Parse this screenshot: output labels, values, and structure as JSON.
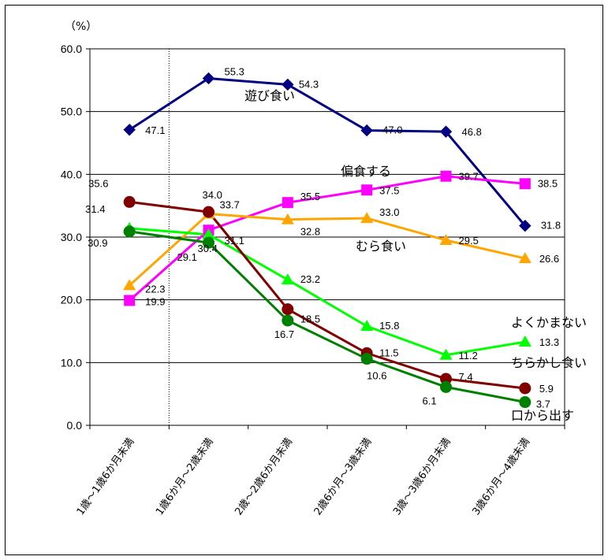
{
  "chart_data": {
    "type": "line",
    "ylabel": "（%）",
    "ylim": [
      0,
      60
    ],
    "yticks": [
      "0.0",
      "10.0",
      "20.0",
      "30.0",
      "40.0",
      "50.0",
      "60.0"
    ],
    "grid": true,
    "categories": [
      "1歳～1歳6か月未満",
      "1歳6か月～2歳未満",
      "2歳～2歳6か月未満",
      "2歳6か月～3歳未満",
      "3歳～3歳6か月未満",
      "3歳6か月～4歳未満"
    ],
    "series": [
      {
        "name": "遊び食い",
        "color": "#000080",
        "marker": "diamond",
        "values": [
          47.1,
          55.3,
          54.3,
          47.0,
          46.8,
          31.8
        ],
        "labels": [
          "47.1",
          "55.3",
          "54.3",
          "47.0",
          "46.8",
          "31.8"
        ]
      },
      {
        "name": "偏食する",
        "color": "#ff00ff",
        "marker": "square",
        "values": [
          19.9,
          31.1,
          35.5,
          37.5,
          39.7,
          38.5
        ],
        "labels": [
          "19.9",
          "31.1",
          "35.5",
          "37.5",
          "39.7",
          "38.5"
        ]
      },
      {
        "name": "むら食い",
        "color": "#ffa500",
        "marker": "triangle",
        "values": [
          22.3,
          33.7,
          32.8,
          33.0,
          29.5,
          26.6
        ],
        "labels": [
          "22.3",
          "33.7",
          "32.8",
          "33.0",
          "29.5",
          "26.6"
        ]
      },
      {
        "name": "よくかまない",
        "color": "#00ff00",
        "marker": "triangle",
        "values": [
          31.4,
          30.4,
          23.2,
          15.8,
          11.2,
          13.3
        ],
        "labels": [
          "31.4",
          "30.4",
          "23.2",
          "15.8",
          "11.2",
          "13.3"
        ]
      },
      {
        "name": "ちらかし食い",
        "color": "#800000",
        "marker": "circle",
        "values": [
          35.6,
          34.0,
          18.5,
          11.5,
          7.4,
          5.9
        ],
        "labels": [
          "35.6",
          "34.0",
          "18.5",
          "11.5",
          "7.4",
          "5.9"
        ]
      },
      {
        "name": "口から出す",
        "color": "#008000",
        "marker": "circle",
        "values": [
          30.9,
          29.1,
          16.7,
          10.6,
          6.1,
          3.7
        ],
        "labels": [
          "30.9",
          "29.1",
          "16.7",
          "10.6",
          "6.1",
          "3.7"
        ]
      }
    ]
  }
}
